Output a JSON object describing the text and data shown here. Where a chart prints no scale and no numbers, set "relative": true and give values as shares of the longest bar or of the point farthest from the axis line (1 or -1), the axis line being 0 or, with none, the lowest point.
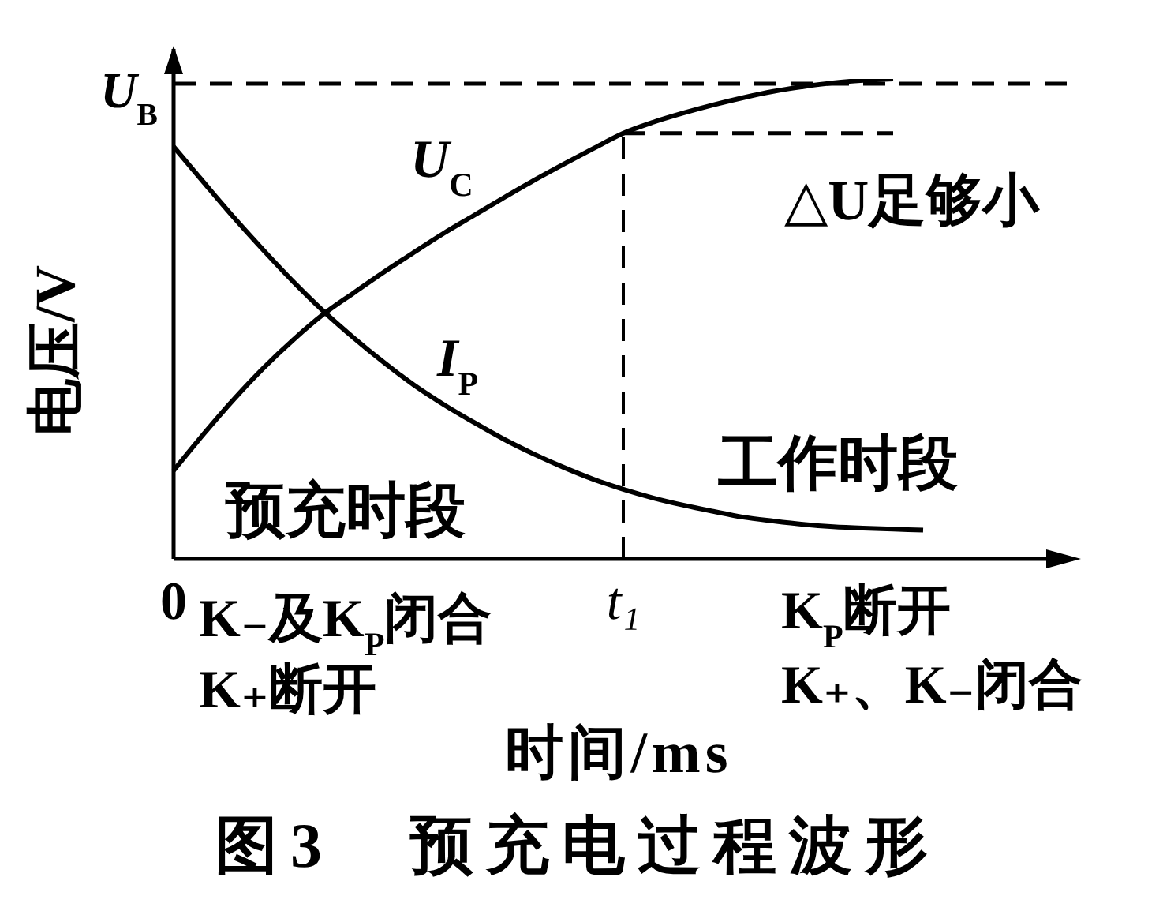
{
  "chart_data": {
    "type": "line",
    "title": "图3　预充电过程波形",
    "xlabel": "时间/ms",
    "ylabel": "电压/V",
    "relative": true,
    "categories": [
      "0",
      null,
      null,
      null,
      null,
      null,
      null,
      null,
      null,
      null,
      null,
      null,
      null,
      null,
      null,
      "t₁",
      null,
      null,
      null,
      null,
      null,
      null,
      null,
      null,
      null,
      null,
      null,
      null,
      null,
      null,
      null
    ],
    "series": [
      {
        "name": "U$_{C}$",
        "color": "#000000",
        "values": [
          0.184,
          0.26,
          0.332,
          0.398,
          0.457,
          0.51,
          0.554,
          0.597,
          0.638,
          0.678,
          0.715,
          0.752,
          0.788,
          0.822,
          0.855,
          0.887,
          0.91,
          0.929,
          0.946,
          0.961,
          0.974,
          0.984,
          0.992,
          0.997,
          1,
          null,
          null,
          null,
          null,
          null,
          null
        ]
      },
      {
        "name": "I$_{P}$",
        "color": "#000000",
        "values": [
          0.859,
          0.785,
          0.712,
          0.643,
          0.577,
          0.516,
          0.461,
          0.41,
          0.363,
          0.322,
          0.285,
          0.25,
          0.219,
          0.191,
          0.166,
          0.145,
          0.127,
          0.112,
          0.099,
          0.087,
          0.079,
          0.072,
          0.067,
          0.064,
          0.062,
          0.06,
          null,
          null,
          null,
          null,
          null
        ]
      },
      {
        "name": "U$_{B}$",
        "color": "#000000",
        "line_style": "dashed",
        "values": [
          0.99,
          0.99,
          0.99,
          0.99,
          0.99,
          0.99,
          0.99,
          0.99,
          0.99,
          0.99,
          0.99,
          0.99,
          0.99,
          0.99,
          0.99,
          0.99,
          0.99,
          0.99,
          0.99,
          0.99,
          0.99,
          0.99,
          0.99,
          0.99,
          0.99,
          0.99,
          0.99,
          0.99,
          0.99,
          0.99,
          0.99
        ]
      },
      {
        "color": "#000000",
        "line_style": "dashed",
        "values": [
          null,
          null,
          null,
          null,
          null,
          null,
          null,
          null,
          null,
          null,
          null,
          null,
          null,
          null,
          null,
          0.887,
          0.887,
          0.887,
          0.887,
          0.887,
          0.887,
          0.887,
          0.887,
          0.887,
          0.887,
          null,
          null,
          null,
          null,
          null,
          null
        ]
      }
    ],
    "ref_lines": [
      {
        "axis": "x",
        "value": "t₁",
        "line_style": "dashed"
      }
    ],
    "annotations": [
      "△U足够小",
      "预充时段",
      "工作时段",
      "K₋及K$_{P}$闭合",
      "K₊断开",
      "K$_{P}$断开",
      "K₊、K₋闭合"
    ]
  }
}
